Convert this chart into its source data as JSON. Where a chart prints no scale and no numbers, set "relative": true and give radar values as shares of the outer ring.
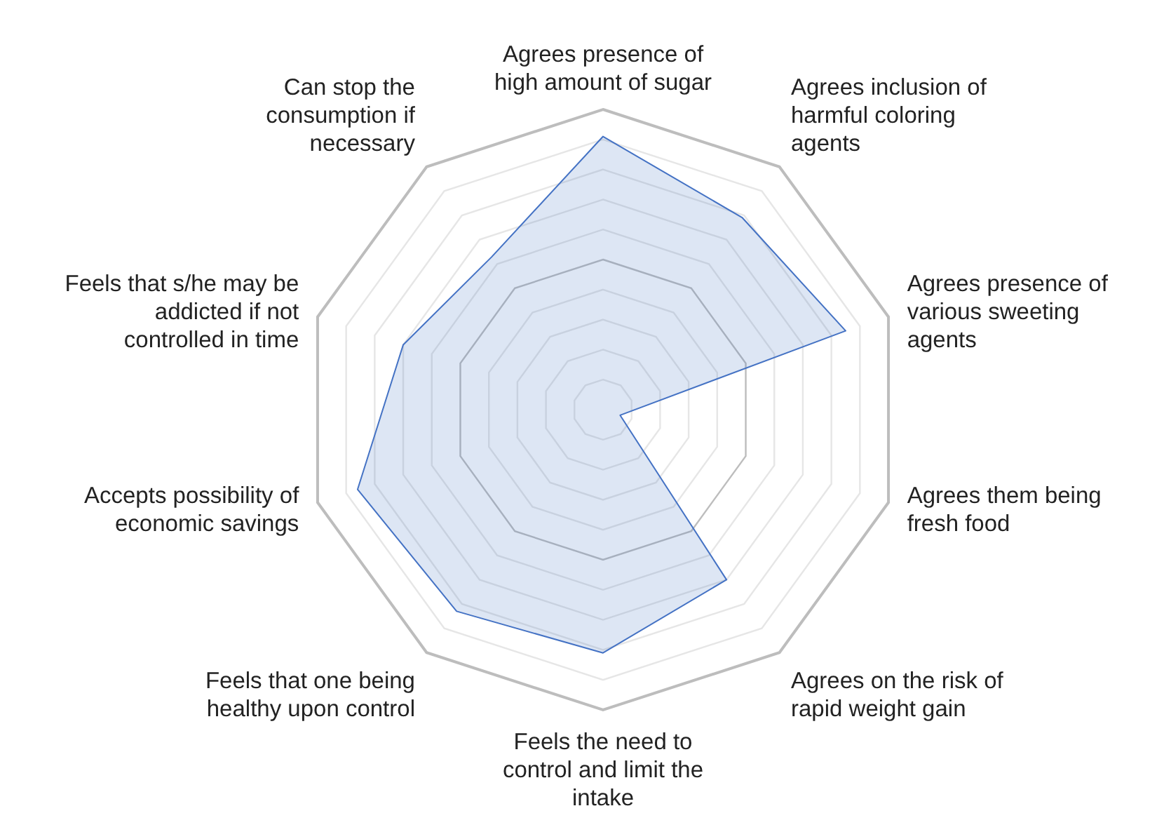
{
  "chart_data": {
    "type": "radar",
    "relative": true,
    "grid": true,
    "categories": [
      "Agrees presence of high amount of sugar",
      "Agrees inclusion of harmful coloring agents",
      "Agrees presence of various sweeting agents",
      "Agrees them being fresh food",
      "Agrees on the risk of rapid weight gain",
      "Feels the need to control and limit the intake",
      "Feels that one being healthy upon control",
      "Accepts possibility of economic savings",
      "Feels that s/he may be addicted if not controlled in time",
      "Can stop the consumption if necessary"
    ],
    "series": [
      {
        "color": "#4472c4",
        "values": [
          0.91,
          0.79,
          0.85,
          0.06,
          0.7,
          0.81,
          0.83,
          0.86,
          0.7,
          0.63
        ]
      }
    ]
  }
}
